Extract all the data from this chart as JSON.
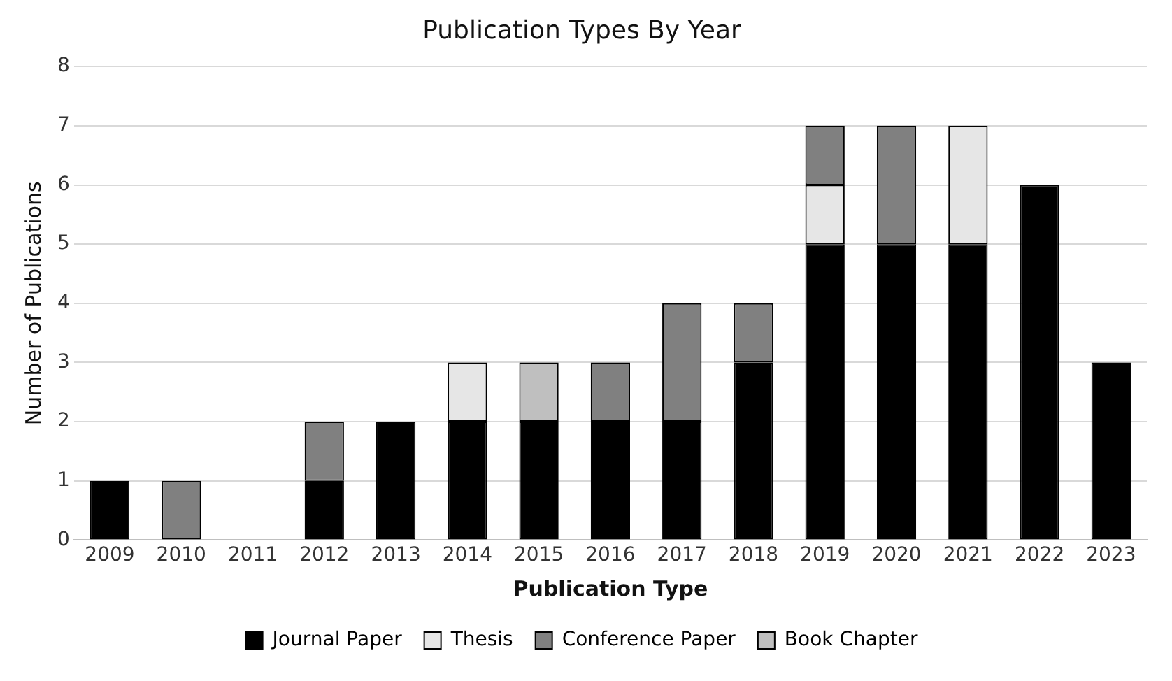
{
  "chart_data": {
    "type": "bar",
    "title": "Publication Types By Year",
    "xlabel": "Publication Type",
    "ylabel": "Number of Publications",
    "categories": [
      "2009",
      "2010",
      "2011",
      "2012",
      "2013",
      "2014",
      "2015",
      "2016",
      "2017",
      "2018",
      "2019",
      "2020",
      "2021",
      "2022",
      "2023"
    ],
    "stacked": true,
    "series": [
      {
        "name": "Journal Paper",
        "color": "#000000",
        "values": [
          1,
          0,
          0,
          1,
          2,
          2,
          2,
          2,
          2,
          3,
          5,
          5,
          5,
          6,
          3
        ]
      },
      {
        "name": "Thesis",
        "color": "#e6e6e6",
        "values": [
          0,
          0,
          0,
          0,
          0,
          1,
          0,
          0,
          0,
          0,
          1,
          0,
          2,
          0,
          0
        ]
      },
      {
        "name": "Conference Paper",
        "color": "#808080",
        "values": [
          0,
          1,
          0,
          1,
          0,
          0,
          0,
          1,
          2,
          1,
          1,
          2,
          0,
          0,
          0
        ]
      },
      {
        "name": "Book Chapter",
        "color": "#bfbfbf",
        "values": [
          0,
          0,
          0,
          0,
          0,
          0,
          1,
          0,
          0,
          0,
          0,
          0,
          0,
          0,
          0
        ]
      }
    ],
    "ylim": [
      0,
      8
    ],
    "yticks": [
      0,
      1,
      2,
      3,
      4,
      5,
      6,
      7,
      8
    ],
    "grid": "y",
    "legend": "bottom"
  }
}
